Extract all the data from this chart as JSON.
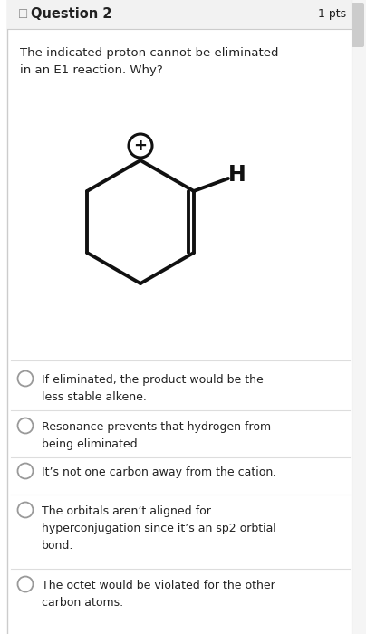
{
  "title": "Question 2",
  "pts": "1 pts",
  "question_text": "The indicated proton cannot be eliminated\nin an E1 reaction. Why?",
  "choices": [
    "If eliminated, the product would be the\nless stable alkene.",
    "Resonance prevents that hydrogen from\nbeing eliminated.",
    "It’s not one carbon away from the cation.",
    "The orbitals aren’t aligned for\nhyperconjugation since it’s an sp2 orbtial\nbond.",
    "The octet would be violated for the other\ncarbon atoms."
  ],
  "bg_color": "#ffffff",
  "border_color": "#cccccc",
  "header_bg": "#f2f2f2",
  "text_color": "#222222",
  "radio_color": "#999999",
  "line_color": "#dddddd",
  "title_fontsize": 10.5,
  "question_fontsize": 9.5,
  "choice_fontsize": 9.0,
  "scrollbar_color": "#cccccc"
}
